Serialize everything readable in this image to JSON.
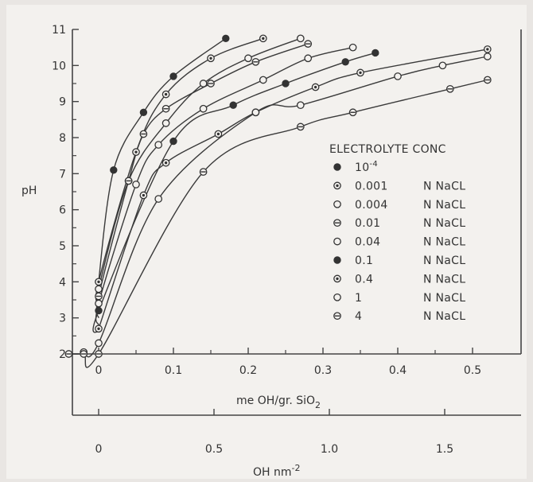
{
  "chart_data": {
    "type": "line",
    "ylabel": "pH",
    "xlabel_main": "me OH/gr. SiO",
    "xlabel_main_sub": "2",
    "xlabel_secondary": "OH nm",
    "xlabel_secondary_sup": "-2",
    "ylim": [
      2,
      11
    ],
    "xlim_main": [
      -0.05,
      0.53
    ],
    "y_ticks": [
      2,
      3,
      4,
      5,
      6,
      7,
      8,
      9,
      10,
      11
    ],
    "x_main_ticks": [
      {
        "value": 0,
        "label": "0"
      },
      {
        "value": 0.1,
        "label": "0.1"
      },
      {
        "value": 0.2,
        "label": "0.2"
      },
      {
        "value": 0.3,
        "label": "0.3"
      },
      {
        "value": 0.4,
        "label": "0.4"
      },
      {
        "value": 0.5,
        "label": "0.5"
      }
    ],
    "x_secondary_ticks": [
      {
        "value": 0,
        "label": "0"
      },
      {
        "value": 0.5,
        "label": "0.5"
      },
      {
        "value": 1.0,
        "label": "1.0"
      },
      {
        "value": 1.5,
        "label": "1.5"
      }
    ],
    "legend_title": "ELECTROLYTE CONC",
    "legend_placement": "right",
    "series": [
      {
        "name": "10",
        "name_sup": "-4",
        "unit": "",
        "marker": "filled",
        "x": [
          0.0,
          0.02,
          0.06,
          0.1,
          0.17
        ],
        "y": [
          4.0,
          7.1,
          8.7,
          9.7,
          10.75
        ]
      },
      {
        "name": "0.001",
        "unit": "N  NaCL",
        "marker": "dot",
        "x": [
          0.0,
          0.05,
          0.09,
          0.15,
          0.22
        ],
        "y": [
          4.0,
          7.6,
          9.2,
          10.2,
          10.75
        ]
      },
      {
        "name": "0.004",
        "unit": "N  NaCL",
        "marker": "open",
        "x": [
          0.0,
          0.04,
          0.09,
          0.14,
          0.2,
          0.27
        ],
        "y": [
          3.8,
          6.8,
          8.4,
          9.5,
          10.2,
          10.75
        ]
      },
      {
        "name": "0.01",
        "unit": "N  NaCL",
        "marker": "dash",
        "x": [
          0.0,
          0.04,
          0.06,
          0.09,
          0.15,
          0.21,
          0.28
        ],
        "y": [
          3.6,
          6.8,
          8.1,
          8.8,
          9.5,
          10.1,
          10.6
        ]
      },
      {
        "name": "0.04",
        "unit": "N  NaCL",
        "marker": "open",
        "x": [
          0.0,
          0.05,
          0.08,
          0.14,
          0.22,
          0.28,
          0.34
        ],
        "y": [
          3.4,
          6.7,
          7.8,
          8.8,
          9.6,
          10.2,
          10.5
        ]
      },
      {
        "name": "0.1",
        "unit": "N  NaCL",
        "marker": "filled",
        "x": [
          0.0,
          0.1,
          0.18,
          0.25,
          0.33,
          0.37
        ],
        "y": [
          3.2,
          7.9,
          8.9,
          9.5,
          10.1,
          10.35
        ]
      },
      {
        "name": "0.4",
        "unit": "N  NaCL",
        "marker": "dot",
        "x": [
          0.0,
          0.06,
          0.09,
          0.16,
          0.21,
          0.29,
          0.35,
          0.52
        ],
        "y": [
          2.7,
          6.4,
          7.3,
          8.1,
          8.7,
          9.4,
          9.8,
          10.45
        ]
      },
      {
        "name": "1",
        "unit": "N  NaCL",
        "marker": "open",
        "x": [
          -0.02,
          0.0,
          0.08,
          0.21,
          0.27,
          0.4,
          0.46,
          0.52
        ],
        "y": [
          2.05,
          2.3,
          6.3,
          8.7,
          8.9,
          9.7,
          10.0,
          10.25
        ]
      },
      {
        "name": "4",
        "unit": "N  NaCL",
        "marker": "dash",
        "x": [
          -0.04,
          -0.02,
          0.0,
          0.14,
          0.27,
          0.34,
          0.47,
          0.52
        ],
        "y": [
          2.0,
          2.0,
          2.0,
          7.05,
          8.3,
          8.7,
          9.35,
          9.6
        ]
      }
    ]
  }
}
